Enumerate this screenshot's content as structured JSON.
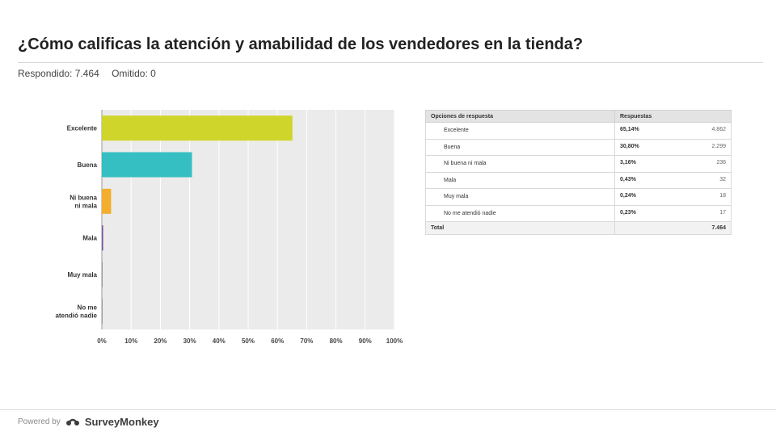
{
  "header": {
    "question": "¿Cómo calificas la atención y amabilidad de los vendedores en la tienda?",
    "answered": "Respondido: 7.464",
    "skipped": "Omitido: 0"
  },
  "chart_data": {
    "type": "bar",
    "orientation": "horizontal",
    "categories": [
      "Excelente",
      "Buena",
      "Ni buena ni mala",
      "Mala",
      "Muy mala",
      "No me atendió nadie"
    ],
    "values": [
      65.14,
      30.8,
      3.16,
      0.43,
      0.24,
      0.23
    ],
    "colors": [
      "#cfd52b",
      "#35bfc2",
      "#f2ae2c",
      "#7a4fa1",
      "#8a8a8a",
      "#8a8a8a"
    ],
    "xlim": [
      0,
      100
    ],
    "xticks": [
      "0%",
      "10%",
      "20%",
      "30%",
      "40%",
      "50%",
      "60%",
      "70%",
      "80%",
      "90%",
      "100%"
    ],
    "grid": true
  },
  "table": {
    "headers": [
      "Opciones de respuesta",
      "Respuestas"
    ],
    "rows": [
      {
        "option": "Excelente",
        "percent": "65,14%",
        "count": "4.862"
      },
      {
        "option": "Buena",
        "percent": "30,80%",
        "count": "2.299"
      },
      {
        "option": "Ni buena ni mala",
        "percent": "3,16%",
        "count": "236"
      },
      {
        "option": "Mala",
        "percent": "0,43%",
        "count": "32"
      },
      {
        "option": "Muy mala",
        "percent": "0,24%",
        "count": "18"
      },
      {
        "option": "No me atendió nadie",
        "percent": "0,23%",
        "count": "17"
      }
    ],
    "total_label": "Total",
    "total_value": "7.464"
  },
  "footer": {
    "powered_by": "Powered by",
    "brand": "SurveyMonkey"
  }
}
